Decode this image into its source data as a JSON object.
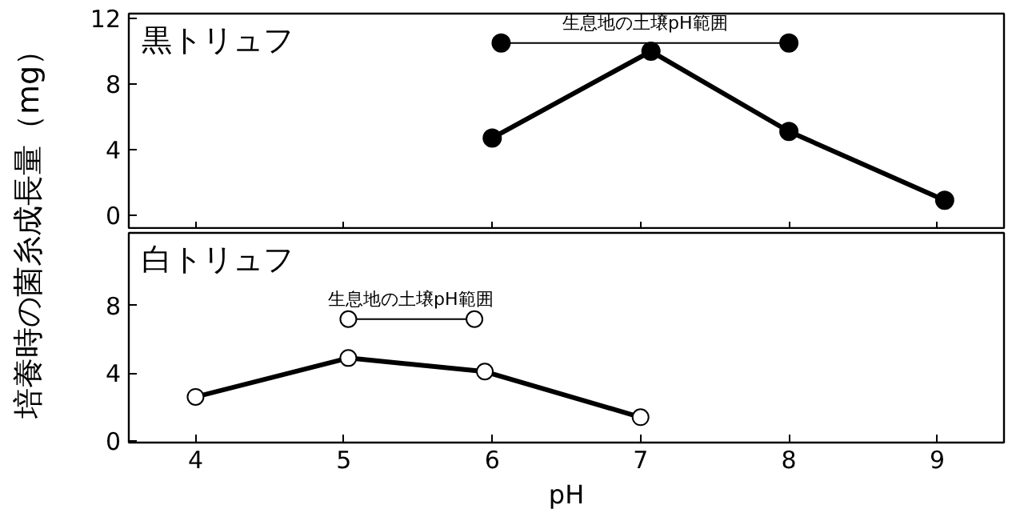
{
  "chart_data": [
    {
      "type": "line",
      "title": "黒トリュフ",
      "ylabel": "培養時の菌糸成長量（mg）",
      "xlim": [
        3.55,
        9.45
      ],
      "ylim": [
        -0.9,
        12.3
      ],
      "xticks": [
        4,
        5,
        6,
        7,
        8,
        9
      ],
      "yticks": [
        0,
        4,
        8,
        12
      ],
      "tick_labels": "y",
      "grid": false,
      "marker": "circle",
      "line_style": "solid",
      "series": [
        {
          "color": "#000000",
          "x": [
            6.0,
            7.07,
            8.0,
            9.05
          ],
          "values": [
            4.7,
            10.0,
            5.1,
            0.9
          ]
        },
        {
          "color": "#000000",
          "x": [
            6.06,
            8.0
          ],
          "values": [
            10.5,
            10.5
          ]
        }
      ],
      "annotations": [
        {
          "text": "生息地の土壌pH範囲",
          "x": 7.03,
          "y": 10.5
        }
      ]
    },
    {
      "type": "line",
      "title": "白トリュフ",
      "xlabel": "pH",
      "xlim": [
        3.55,
        9.45
      ],
      "ylim": [
        -0.1,
        12.3
      ],
      "xticks": [
        4,
        5,
        6,
        7,
        8,
        9
      ],
      "yticks": [
        0,
        4,
        8
      ],
      "grid": false,
      "marker": "circle",
      "line_style": "solid",
      "series": [
        {
          "color": "#000000",
          "x": [
            4.0,
            5.03,
            5.95,
            7.0
          ],
          "values": [
            2.6,
            4.9,
            4.1,
            1.4
          ]
        },
        {
          "color": "#000000",
          "x": [
            5.03,
            5.88
          ],
          "values": [
            7.2,
            7.2
          ]
        }
      ],
      "annotations": [
        {
          "text": "生息地の土壌pH範囲",
          "x": 5.45,
          "y": 7.2
        }
      ]
    }
  ]
}
